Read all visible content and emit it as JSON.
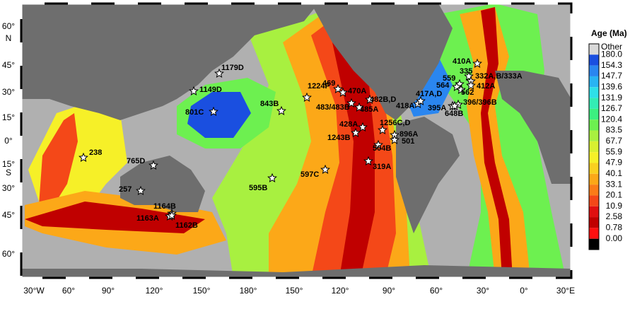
{
  "legend": {
    "title": "Age (Ma)",
    "items": [
      {
        "label": "Other",
        "color": "#d9d9d9"
      },
      {
        "label": "180.0",
        "color": "#1a4fe0"
      },
      {
        "label": "154.3",
        "color": "#2a86f0"
      },
      {
        "label": "147.7",
        "color": "#29b4f3"
      },
      {
        "label": "139.6",
        "color": "#2ee0e8"
      },
      {
        "label": "131.9",
        "color": "#33ecb4"
      },
      {
        "label": "126.7",
        "color": "#3cf080"
      },
      {
        "label": "120.4",
        "color": "#6df050"
      },
      {
        "label": "83.5",
        "color": "#a8f040"
      },
      {
        "label": "67.7",
        "color": "#d8f030"
      },
      {
        "label": "55.9",
        "color": "#f6f028"
      },
      {
        "label": "47.9",
        "color": "#fad020"
      },
      {
        "label": "40.1",
        "color": "#fca818"
      },
      {
        "label": "33.1",
        "color": "#fb7c18"
      },
      {
        "label": "20.1",
        "color": "#f44818"
      },
      {
        "label": "10.9",
        "color": "#e01010"
      },
      {
        "label": "2.58",
        "color": "#c00000"
      },
      {
        "label": "0.78",
        "color": "#ff1010"
      },
      {
        "label": "0.00",
        "color": "#000000"
      }
    ]
  },
  "axis": {
    "lon": [
      "30°W",
      "60°",
      "90°",
      "120°",
      "150°",
      "180°",
      "150°",
      "120°",
      "90°",
      "60°",
      "30°",
      "0°",
      "30°E"
    ],
    "lat": [
      "60°",
      "N",
      "45°",
      "30°",
      "15°",
      "0°",
      "15°",
      "S",
      "30°",
      "45°",
      "60°"
    ]
  },
  "sites": [
    {
      "label": "1179D"
    },
    {
      "label": "1149D"
    },
    {
      "label": "801C"
    },
    {
      "label": "843B"
    },
    {
      "label": "1224F"
    },
    {
      "label": "469"
    },
    {
      "label": "470A"
    },
    {
      "label": "483/483B"
    },
    {
      "label": "482B,D"
    },
    {
      "label": "485A"
    },
    {
      "label": "428A"
    },
    {
      "label": "1243B"
    },
    {
      "label": "1256C,D"
    },
    {
      "label": "896A"
    },
    {
      "label": "501"
    },
    {
      "label": "504B"
    },
    {
      "label": "319A"
    },
    {
      "label": "597C"
    },
    {
      "label": "595B"
    },
    {
      "label": "418A"
    },
    {
      "label": "417A,D"
    },
    {
      "label": "410A"
    },
    {
      "label": "335"
    },
    {
      "label": "332A,B/333A"
    },
    {
      "label": "559"
    },
    {
      "label": "564"
    },
    {
      "label": "412A"
    },
    {
      "label": "562"
    },
    {
      "label": "395A"
    },
    {
      "label": "396/396B"
    },
    {
      "label": "648B"
    },
    {
      "label": "238"
    },
    {
      "label": "765D"
    },
    {
      "label": "257"
    },
    {
      "label": "1164B"
    },
    {
      "label": "1163A"
    },
    {
      "label": "1162B"
    }
  ]
}
